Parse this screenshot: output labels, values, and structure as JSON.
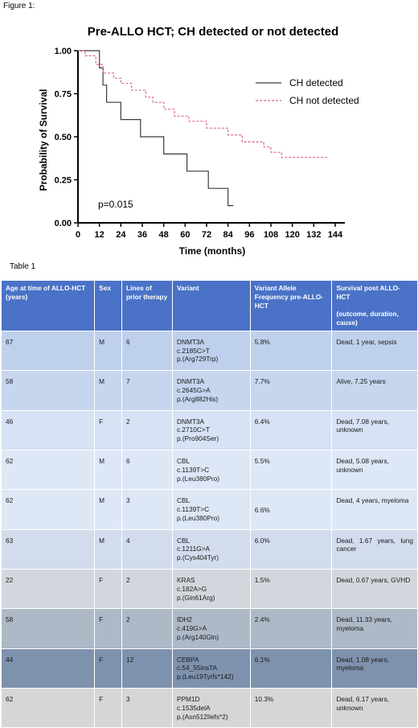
{
  "figure_caption": "Figure 1:",
  "table_caption": "Table 1",
  "chart_data": {
    "type": "line",
    "title": "Pre-ALLO HCT; CH detected or not detected",
    "xlabel": "Time (months)",
    "ylabel": "Probability of Survival",
    "xlim": [
      0,
      144
    ],
    "ylim": [
      0,
      1
    ],
    "xticks": [
      "0",
      "12",
      "24",
      "36",
      "48",
      "60",
      "72",
      "84",
      "96",
      "108",
      "120",
      "132",
      "144"
    ],
    "yticks": [
      "0.00",
      "0.25",
      "0.50",
      "0.75",
      "1.00"
    ],
    "annotation": "p=0.015",
    "legend_position": "top-right",
    "series": [
      {
        "name": "CH detected",
        "style": "solid",
        "color": "#3a3a3a",
        "points": [
          [
            0,
            1.0
          ],
          [
            12,
            1.0
          ],
          [
            12,
            0.9
          ],
          [
            14,
            0.9
          ],
          [
            14,
            0.8
          ],
          [
            16,
            0.8
          ],
          [
            16,
            0.7
          ],
          [
            24,
            0.7
          ],
          [
            24,
            0.6
          ],
          [
            35,
            0.6
          ],
          [
            35,
            0.5
          ],
          [
            48,
            0.5
          ],
          [
            48,
            0.4
          ],
          [
            61,
            0.4
          ],
          [
            61,
            0.3
          ],
          [
            73,
            0.3
          ],
          [
            73,
            0.2
          ],
          [
            84,
            0.2
          ],
          [
            84,
            0.1
          ],
          [
            87,
            0.1
          ]
        ]
      },
      {
        "name": "CH not detected",
        "style": "dashed",
        "color": "#d9659a",
        "points": [
          [
            0,
            1.0
          ],
          [
            4,
            1.0
          ],
          [
            4,
            0.97
          ],
          [
            10,
            0.97
          ],
          [
            10,
            0.92
          ],
          [
            14,
            0.92
          ],
          [
            14,
            0.87
          ],
          [
            20,
            0.87
          ],
          [
            20,
            0.84
          ],
          [
            24,
            0.84
          ],
          [
            24,
            0.81
          ],
          [
            30,
            0.81
          ],
          [
            30,
            0.77
          ],
          [
            38,
            0.77
          ],
          [
            38,
            0.73
          ],
          [
            42,
            0.73
          ],
          [
            42,
            0.7
          ],
          [
            48,
            0.7
          ],
          [
            48,
            0.66
          ],
          [
            54,
            0.66
          ],
          [
            54,
            0.62
          ],
          [
            62,
            0.62
          ],
          [
            62,
            0.59
          ],
          [
            72,
            0.59
          ],
          [
            72,
            0.55
          ],
          [
            84,
            0.55
          ],
          [
            84,
            0.51
          ],
          [
            92,
            0.51
          ],
          [
            92,
            0.47
          ],
          [
            104,
            0.47
          ],
          [
            104,
            0.44
          ],
          [
            108,
            0.44
          ],
          [
            108,
            0.41
          ],
          [
            114,
            0.41
          ],
          [
            114,
            0.38
          ],
          [
            140,
            0.38
          ]
        ]
      }
    ]
  },
  "table": {
    "headers": [
      "Age at time of ALLO-HCT (years)",
      "Sex",
      "Lines of prior therapy",
      "Variant",
      "Variant Allele Frequency pre-ALLO-HCT",
      "Survival post ALLO-HCT"
    ],
    "survival_sub_header": "(outcome, duration, cause)",
    "rows": [
      {
        "age": "67",
        "sex": "M",
        "lines": "6",
        "gene": "DNMT3A",
        "cdna": "c.2185C>T",
        "protein": "p.(Arg729Trp)",
        "vaf": "5.8%",
        "survival": "Dead, 1 year, sepsis"
      },
      {
        "age": "58",
        "sex": "M",
        "lines": "7",
        "gene": "DNMT3A",
        "cdna": "c.2645G>A",
        "protein": "p.(Arg882His)",
        "vaf": "7.7%",
        "survival": "Alive, 7.25 years"
      },
      {
        "age": "46",
        "sex": "F",
        "lines": "2",
        "gene": "DNMT3A",
        "cdna": "c.2710C>T",
        "protein": "p.(Pro904Ser)",
        "vaf": "6.4%",
        "survival": "Dead, 7.08 years, unknown"
      },
      {
        "age": "62",
        "sex": "M",
        "lines": "6",
        "gene": "CBL",
        "cdna": "c.1139T>C",
        "protein": "p.(Leu380Pro)",
        "vaf": "5.5%",
        "survival": "Dead, 5.08 years, unknown"
      },
      {
        "age": "62",
        "sex": "M",
        "lines": "3",
        "gene": "CBL",
        "cdna": "c.1139T>C",
        "protein": "p.(Leu380Pro)",
        "vaf": "6.6%",
        "survival": "Dead, 4 years, myeloma"
      },
      {
        "age": "63",
        "sex": "M",
        "lines": "4",
        "gene": "CBL",
        "cdna": "c.1211G>A",
        "protein": "p.(Cys404Tyr)",
        "vaf": "6.0%",
        "survival": "Dead, 1.67 years, lung cancer"
      },
      {
        "age": "22",
        "sex": "F",
        "lines": "2",
        "gene": "KRAS",
        "cdna": "c.182A>G",
        "protein": "p.(Gln61Arg)",
        "vaf": "1.5%",
        "survival": "Dead, 0.67 years, GVHD"
      },
      {
        "age": "58",
        "sex": "F",
        "lines": "2",
        "gene": "IDH2",
        "cdna": "c.419G>A",
        "protein": "p.(Arg140Gln)",
        "vaf": "2.4%",
        "survival": "Dead, 11.33 years, myeloma"
      },
      {
        "age": "44",
        "sex": "F",
        "lines": "12",
        "gene": "CEBPA",
        "cdna": "c.54_55insTA",
        "protein": "p.(Leu19Tyrfs*142)",
        "vaf": "6.1%",
        "survival": "Dead, 1.08 years, myeloma"
      },
      {
        "age": "62",
        "sex": "F",
        "lines": "3",
        "gene": "PPM1D",
        "cdna": "c.1535delA",
        "protein": "p.(Asn512Ilefs*2)",
        "vaf": "10.3%",
        "survival": "Dead, 6.17 years, unknown"
      }
    ]
  }
}
